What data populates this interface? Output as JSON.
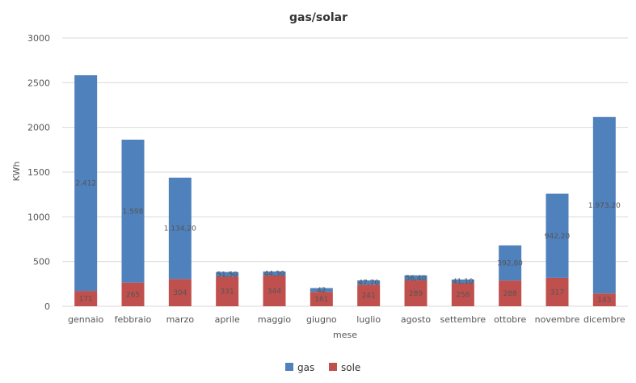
{
  "chart_data": {
    "type": "bar",
    "stacked": true,
    "title": "gas/solar",
    "xlabel": "mese",
    "ylabel": "KWh",
    "ylim": [
      0,
      3000
    ],
    "yticks": [
      0,
      500,
      1000,
      1500,
      2000,
      2500,
      3000
    ],
    "grid": true,
    "legend_position": "bottom",
    "categories": [
      "gennaio",
      "febbraio",
      "marzo",
      "aprile",
      "maggio",
      "giugno",
      "luglio",
      "agosto",
      "settembre",
      "ottobre",
      "novembre",
      "dicembre"
    ],
    "series": [
      {
        "name": "sole",
        "color": "#c0504d",
        "values": [
          171,
          265,
          304,
          331,
          344,
          161,
          241,
          289,
          258,
          288,
          317,
          143
        ],
        "labels": [
          "171",
          "265",
          "304",
          "331",
          "344",
          "161",
          "241",
          "289",
          "258",
          "288",
          "317",
          "143"
        ]
      },
      {
        "name": "gas",
        "color": "#4f81bd",
        "values": [
          2412,
          1598,
          1134.2,
          51.5,
          44.3,
          42,
          47.7,
          56.4,
          41.1,
          392.8,
          942.2,
          1973.2
        ],
        "labels": [
          "2.412",
          "1.598",
          "1.134,20",
          "51,50",
          "44,30",
          "42",
          "47,70",
          "56,40",
          "41,10",
          "392,80",
          "942,20",
          "1.973,20"
        ]
      }
    ]
  }
}
